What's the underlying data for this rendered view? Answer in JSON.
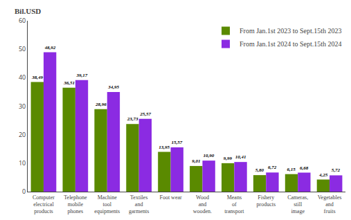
{
  "chart_data": {
    "type": "bar",
    "ylabel": "Bil.USD",
    "categories": [
      "Computer\nelectrical\nproducts",
      "Telephone\nmobile\nphones",
      "Machine\ntool\nequipments",
      "Textiles\nand\ngarments",
      "Foot wear",
      "Wood\nand\nwooden.",
      "Means\nof\ntransport",
      "Fishery\nproducts",
      "Cameras,\nstill\nimage",
      "Vegetables\nand\nfruits"
    ],
    "series": [
      {
        "name": "From Jan.1st 2023 to Sept.15th 2023",
        "color": "#5a8a00",
        "values": [
          38.49,
          36.51,
          28.96,
          23.73,
          13.95,
          9.01,
          9.99,
          5.8,
          6.15,
          4.25
        ],
        "value_labels": [
          "38,49",
          "36,51",
          "28,96",
          "23,73",
          "13,95",
          "9,01",
          "9,99",
          "5,80",
          "6,15",
          "4,25"
        ]
      },
      {
        "name": "From Jan.1st 2024 to Sept.15th 2024",
        "color": "#8b2be2",
        "values": [
          48.92,
          39.17,
          34.95,
          25.57,
          15.57,
          10.9,
          10.41,
          6.72,
          6.68,
          5.72
        ],
        "value_labels": [
          "48,92",
          "39,17",
          "34,95",
          "25,57",
          "15,57",
          "10,90",
          "10,41",
          "6,72",
          "6,68",
          "5,72"
        ]
      }
    ],
    "ylim": [
      0,
      60
    ],
    "yticks": [
      0,
      10,
      20,
      30,
      40,
      50,
      60
    ],
    "grid": false,
    "legend": "upper right",
    "data_labels": true
  }
}
